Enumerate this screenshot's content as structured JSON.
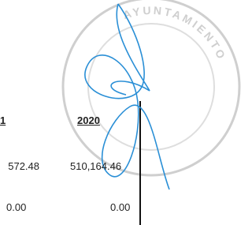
{
  "stamp": {
    "text": "AYUNTAMIENTO"
  },
  "table": {
    "headers": [
      "1",
      "2020"
    ],
    "rows": [
      [
        "572.48",
        "510,164.46"
      ],
      [
        "0.00",
        "0.00"
      ]
    ]
  }
}
